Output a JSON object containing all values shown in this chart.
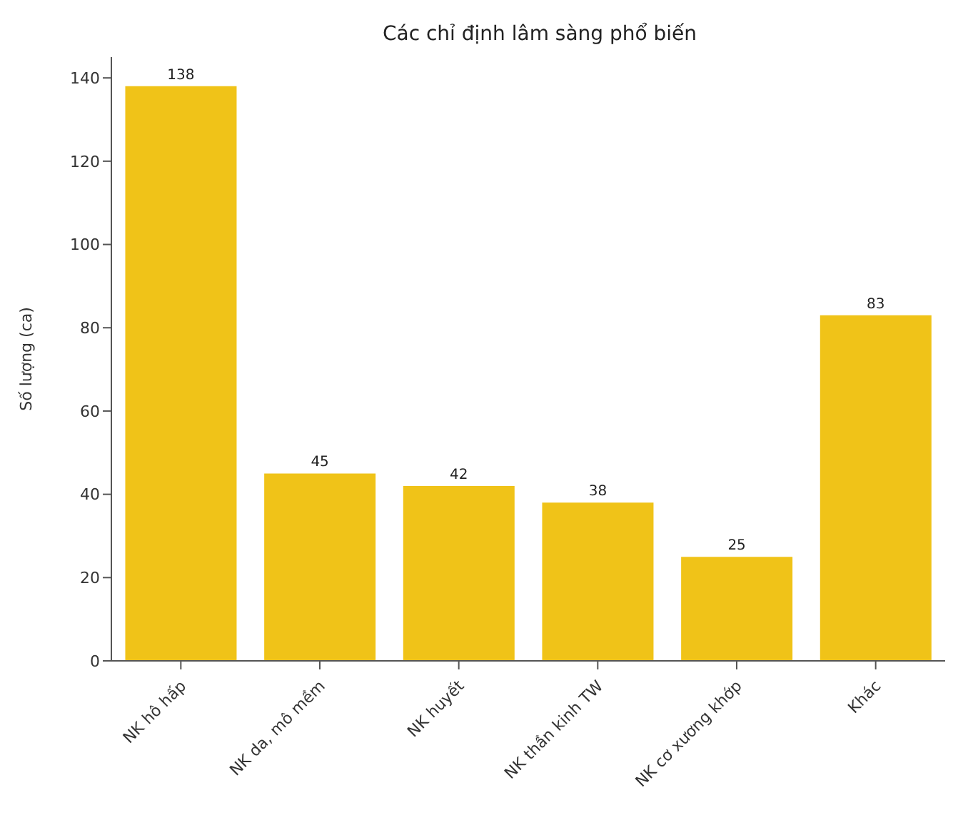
{
  "chart_data": {
    "type": "bar",
    "title": "Các chỉ định lâm sàng phổ biến",
    "ylabel": "Số lượng (ca)",
    "categories": [
      "NK hô hấp",
      "NK da, mô mềm",
      "NK huyết",
      "NK thần kinh TW",
      "NK cơ xương khớp",
      "Khác"
    ],
    "values": [
      138,
      45,
      42,
      38,
      25,
      83
    ],
    "color": "#f0c318",
    "ylim": [
      0,
      145
    ],
    "yticks": [
      0,
      20,
      40,
      60,
      80,
      100,
      120,
      140
    ],
    "grid": false,
    "data_labels": true
  }
}
